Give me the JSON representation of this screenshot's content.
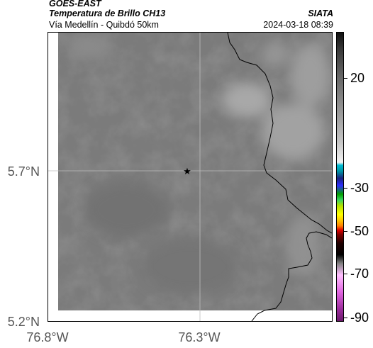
{
  "header": {
    "satellite": "GOES-EAST",
    "product": "Temperatura de Brillo CH13",
    "institution": "SIATA",
    "location": "Vía Medellín - Quibdó 50km",
    "timestamp": "2024-03-18 08:39"
  },
  "axes": {
    "lat_ticks": [
      "5.7°N",
      "5.2°N"
    ],
    "lon_ticks": [
      "76.8°W",
      "76.3°W"
    ]
  },
  "colorbar": {
    "labels": [
      "20",
      "-30",
      "-50",
      "-70",
      "-90"
    ]
  },
  "map": {
    "marker_icon": "star-icon",
    "background_color": "#7b7b7b",
    "coastline_color": "#000000"
  }
}
